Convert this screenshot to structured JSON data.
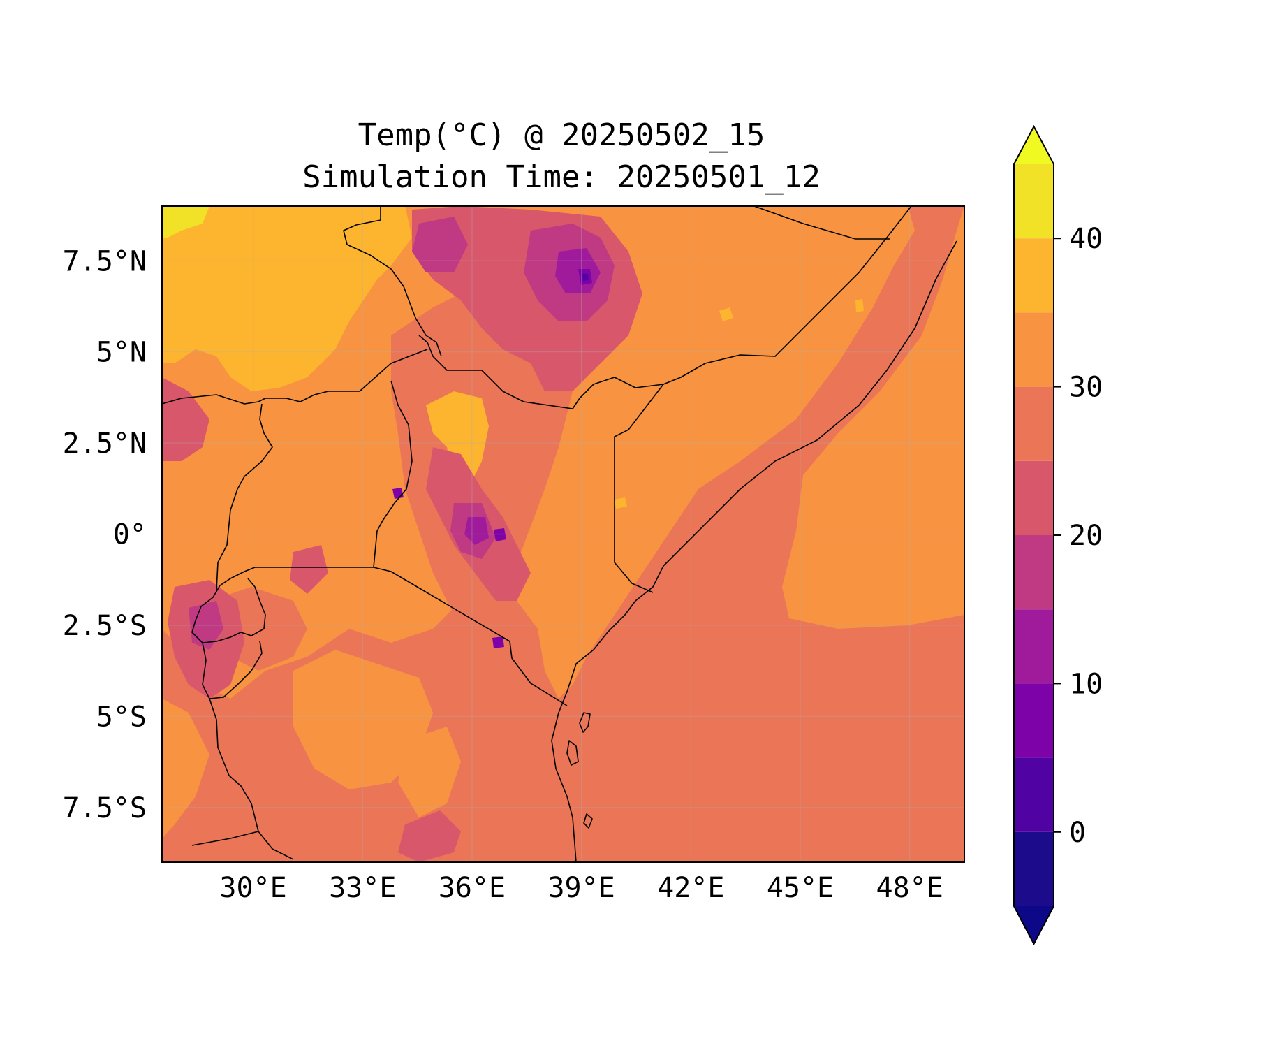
{
  "title": {
    "line1": "Temp(°C) @ 20250502_15",
    "line2": "Simulation Time: 20250501_12"
  },
  "map": {
    "lon_range": [
      27.5,
      49.5
    ],
    "lat_range": [
      -9.0,
      9.0
    ],
    "x_ticks": [
      {
        "lon": 30,
        "label": "30°E"
      },
      {
        "lon": 33,
        "label": "33°E"
      },
      {
        "lon": 36,
        "label": "36°E"
      },
      {
        "lon": 39,
        "label": "39°E"
      },
      {
        "lon": 42,
        "label": "42°E"
      },
      {
        "lon": 45,
        "label": "45°E"
      },
      {
        "lon": 48,
        "label": "48°E"
      }
    ],
    "y_ticks": [
      {
        "lat": 7.5,
        "label": "7.5°N"
      },
      {
        "lat": 5,
        "label": "5°N"
      },
      {
        "lat": 2.5,
        "label": "2.5°N"
      },
      {
        "lat": 0,
        "label": "0°"
      },
      {
        "lat": -2.5,
        "label": "2.5°S"
      },
      {
        "lat": -5,
        "label": "5°S"
      },
      {
        "lat": -7.5,
        "label": "7.5°S"
      }
    ],
    "gridlines": true,
    "background_level_color": "#eb7557"
  },
  "colorbar": {
    "range": [
      -5,
      45
    ],
    "extend": "both",
    "levels": [
      {
        "min": -5,
        "max": 0,
        "color": "#1c0c8c"
      },
      {
        "min": 0,
        "max": 5,
        "color": "#5002a2"
      },
      {
        "min": 5,
        "max": 10,
        "color": "#7d03a8"
      },
      {
        "min": 10,
        "max": 15,
        "color": "#a01a9c"
      },
      {
        "min": 15,
        "max": 20,
        "color": "#c03a83"
      },
      {
        "min": 20,
        "max": 25,
        "color": "#d8576b"
      },
      {
        "min": 25,
        "max": 30,
        "color": "#eb7557"
      },
      {
        "min": 30,
        "max": 35,
        "color": "#f89441"
      },
      {
        "min": 35,
        "max": 40,
        "color": "#fdb42f"
      },
      {
        "min": 40,
        "max": 45,
        "color": "#f2e227"
      }
    ],
    "under_color": "#0d0887",
    "over_color": "#f0f921",
    "ticks": [
      {
        "value": 0,
        "label": "0"
      },
      {
        "value": 10,
        "label": "10"
      },
      {
        "value": 20,
        "label": "20"
      },
      {
        "value": 30,
        "label": "30"
      },
      {
        "value": 40,
        "label": "40"
      }
    ]
  }
}
